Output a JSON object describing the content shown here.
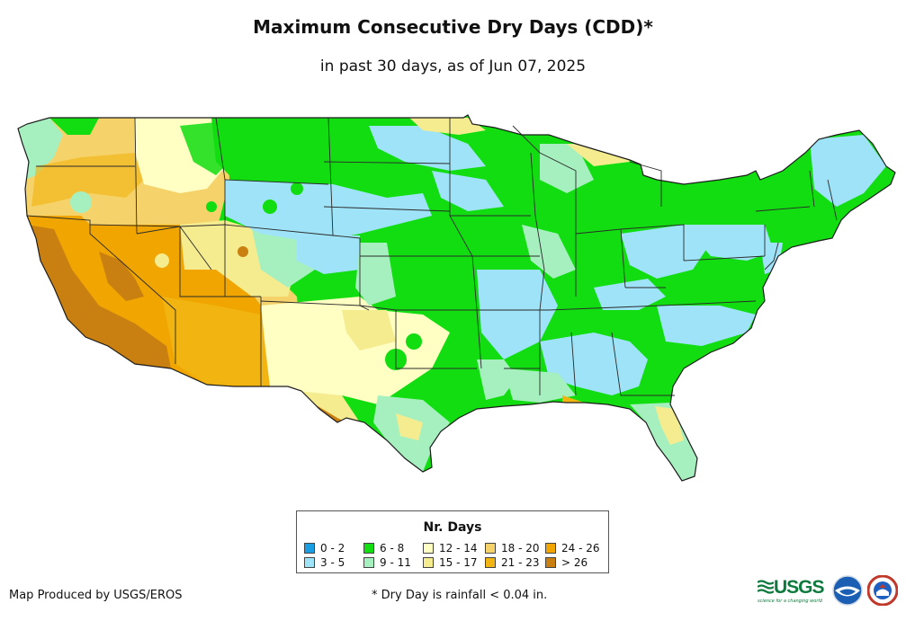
{
  "header": {
    "title": "Maximum Consecutive Dry Days (CDD)*",
    "subtitle": "in past 30 days, as of Jun 07, 2025"
  },
  "legend": {
    "title": "Nr. Days",
    "items": [
      {
        "label": "0 - 2",
        "color": "#1a9de1"
      },
      {
        "label": "3 - 5",
        "color": "#9ee3f7"
      },
      {
        "label": "6 - 8",
        "color": "#11dd11"
      },
      {
        "label": "9 - 11",
        "color": "#a6f0c0"
      },
      {
        "label": "12 - 14",
        "color": "#ffffc4"
      },
      {
        "label": "15 - 17",
        "color": "#f5ec8f"
      },
      {
        "label": "18 - 20",
        "color": "#f6d36a"
      },
      {
        "label": "21 - 23",
        "color": "#f2b410"
      },
      {
        "label": "24 - 26",
        "color": "#f0a500"
      },
      {
        "label": "> 26",
        "color": "#c98010"
      }
    ]
  },
  "footer": {
    "credit": "Map Produced by USGS/EROS",
    "footnote": "* Dry Day is rainfall < 0.04 in.",
    "usgs_logo": "USGS",
    "usgs_tagline": "science for a changing world"
  },
  "logos": {
    "noaa": "noaa-logo",
    "nws": "nws-logo"
  }
}
